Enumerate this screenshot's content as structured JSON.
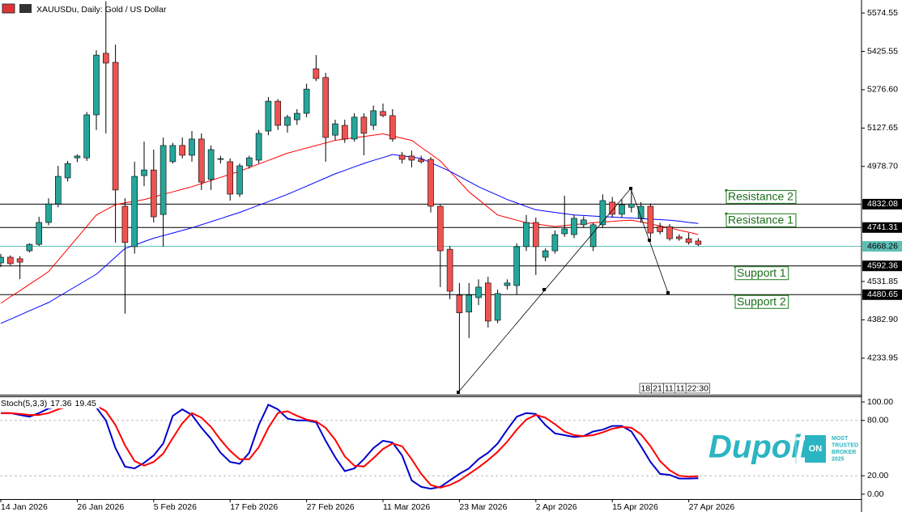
{
  "header": {
    "title": "XAUUSDu, Daily: Gold / US Dollar"
  },
  "chart_data": [
    {
      "type": "candlestick",
      "categories": [
        "14 Jan 2026",
        null,
        null,
        null,
        null,
        null,
        null,
        null,
        "26 Jan 2026",
        null,
        null,
        null,
        null,
        null,
        null,
        null,
        "5 Feb 2026",
        null,
        null,
        null,
        null,
        null,
        null,
        null,
        "17 Feb 2026",
        null,
        null,
        null,
        null,
        null,
        null,
        null,
        "27 Feb 2026",
        null,
        null,
        null,
        null,
        null,
        null,
        null,
        "11 Mar 2026",
        null,
        null,
        null,
        null,
        null,
        null,
        null,
        "23 Mar 2026",
        null,
        null,
        null,
        null,
        null,
        null,
        null,
        "2 Apr 2026",
        null,
        null,
        null,
        null,
        null,
        null,
        null,
        "15 Apr 2026",
        null,
        null,
        null,
        null,
        null,
        null,
        null,
        "27 Apr 2026",
        null
      ],
      "open": [
        4604,
        4626,
        4620,
        4651,
        4676,
        4761,
        4833,
        4934,
        5012,
        5012,
        5179,
        5418,
        5383,
        4824,
        4667,
        4943,
        4965,
        4792,
        4997,
        5060,
        5022,
        5085,
        4928,
        5006,
        4997,
        4871,
        4981,
        5003,
        5116,
        5232,
        5138,
        5160,
        5185,
        5358,
        5324,
        5100,
        5138,
        5085,
        5170,
        5138,
        5192,
        5176,
        5022,
        5019,
        5006,
        5006,
        4824,
        4657,
        4479,
        4413,
        4469,
        4526,
        4381,
        4516,
        4516,
        4667,
        4761,
        4626,
        4651,
        4717,
        4714,
        4752,
        4667,
        4752,
        4840,
        4793,
        4820,
        4777,
        4824,
        4745,
        4745,
        4705,
        4698,
        4689
      ],
      "high": [
        4639,
        4633,
        4630,
        4680,
        4783,
        4855,
        4981,
        5000,
        5025,
        5190,
        5430,
        5620,
        5452,
        4855,
        4997,
        5075,
        5044,
        5091,
        5070,
        5091,
        5116,
        5107,
        5060,
        5020,
        5010,
        4990,
        5020,
        5120,
        5248,
        5240,
        5179,
        5201,
        5300,
        5411,
        5342,
        5160,
        5160,
        5185,
        5185,
        5215,
        5223,
        5201,
        5035,
        5040,
        5020,
        5015,
        4830,
        4670,
        4526,
        4526,
        4540,
        4550,
        4500,
        4540,
        4680,
        4790,
        4780,
        4660,
        4730,
        4865,
        4790,
        4785,
        4760,
        4870,
        4860,
        4850,
        4896,
        4840,
        4835,
        4760,
        4755,
        4715,
        4720,
        4700
      ],
      "low": [
        4588,
        4595,
        4541,
        4645,
        4670,
        4750,
        4820,
        4920,
        4995,
        5000,
        5120,
        5107,
        4683,
        4407,
        4640,
        4902,
        4761,
        4667,
        4990,
        5010,
        4997,
        4887,
        4887,
        4990,
        4846,
        4860,
        4970,
        4990,
        5100,
        5120,
        5110,
        5140,
        5170,
        5310,
        4997,
        5080,
        5070,
        5075,
        5022,
        5120,
        5170,
        5075,
        4990,
        4975,
        4990,
        4800,
        4510,
        4463,
        4102,
        4312,
        4440,
        4353,
        4370,
        4500,
        4480,
        4650,
        4557,
        4610,
        4640,
        4705,
        4700,
        4740,
        4650,
        4740,
        4780,
        4780,
        4800,
        4760,
        4700,
        4715,
        4690,
        4690,
        4675,
        4670
      ],
      "close": [
        4626,
        4601,
        4607,
        4676,
        4761,
        4833,
        4940,
        4990,
        5019,
        5179,
        5411,
        5380,
        4887,
        4683,
        4940,
        4965,
        4783,
        5060,
        5060,
        5022,
        5085,
        4918,
        5044,
        5009,
        4871,
        4981,
        5012,
        5107,
        5232,
        5138,
        5170,
        5185,
        5279,
        5320,
        5091,
        5144,
        5085,
        5170,
        5107,
        5195,
        5176,
        5085,
        5006,
        5003,
        4997,
        4824,
        4651,
        4494,
        4410,
        4479,
        4510,
        4378,
        4485,
        4526,
        4667,
        4761,
        4667,
        4651,
        4714,
        4736,
        4777,
        4771,
        4752,
        4846,
        4793,
        4830,
        4833,
        4824,
        4720,
        4725,
        4698,
        4698,
        4683,
        4676
      ],
      "up_color": "#26a69a",
      "down_color": "#ef5350",
      "lines": [
        {
          "color": "#ff0000",
          "values": [
            4447,
            4472,
            4496,
            4521,
            4545,
            4570,
            4614,
            4658,
            4702,
            4746,
            4790,
            4810,
            4830,
            4837,
            4843,
            4850,
            4860,
            4870,
            4880,
            4890,
            4900,
            4912,
            4924,
            4936,
            4948,
            4960,
            4974,
            4988,
            5002,
            5016,
            5030,
            5040,
            5050,
            5060,
            5070,
            5080,
            5085,
            5090,
            5095,
            5100,
            5105,
            5097,
            5088,
            5080,
            5053,
            5027,
            5000,
            4960,
            4920,
            4880,
            4850,
            4820,
            4790,
            4780,
            4770,
            4760,
            4755,
            4750,
            4745,
            4749,
            4753,
            4756,
            4760,
            4763,
            4765,
            4768,
            4770,
            4763,
            4755,
            4748,
            4740,
            4731,
            4723,
            4714
          ]
        },
        {
          "color": "#0000ff",
          "values": [
            4369,
            4385,
            4401,
            4418,
            4434,
            4450,
            4472,
            4494,
            4516,
            4538,
            4560,
            4593,
            4627,
            4660,
            4673,
            4687,
            4700,
            4710,
            4720,
            4730,
            4740,
            4752,
            4764,
            4776,
            4788,
            4800,
            4814,
            4828,
            4842,
            4856,
            4870,
            4886,
            4902,
            4918,
            4934,
            4950,
            4963,
            4977,
            4990,
            5002,
            5013,
            5025,
            5020,
            5015,
            5010,
            4993,
            4977,
            4960,
            4940,
            4920,
            4900,
            4883,
            4867,
            4850,
            4837,
            4823,
            4810,
            4805,
            4800,
            4795,
            4790,
            4788,
            4786,
            4784,
            4782,
            4780,
            4778,
            4776,
            4774,
            4772,
            4770,
            4766,
            4761,
            4757
          ]
        }
      ],
      "ylim": [
        4092,
        5625
      ],
      "yticks": [
        5574.55,
        5425.55,
        {
          "value": 5276.6,
          "label": "5276.60"
        },
        5127.65,
        {
          "value": 4978.7,
          "label": "4978.70"
        },
        4531.85,
        {
          "value": 4382.9,
          "label": "4382.90"
        },
        4233.95
      ],
      "levels": [
        {
          "label": "Resistance 2",
          "value": 4832.08
        },
        {
          "label": "Resistance 1",
          "value": 4741.31
        },
        {
          "label": "Support 1",
          "value": 4592.36
        },
        {
          "label": "Support 2",
          "value": 4480.65
        }
      ],
      "current_price": 4668.26,
      "current_price_color": "#5fbfb6"
    },
    {
      "type": "line",
      "title": "Stoch(5,3,3)",
      "series": [
        {
          "color": "#0000cd",
          "values": [
            88,
            88,
            86,
            84,
            88,
            93,
            95,
            96,
            97,
            96,
            94,
            80,
            50,
            30,
            28,
            34,
            42,
            55,
            85,
            92,
            86,
            72,
            60,
            45,
            35,
            33,
            45,
            75,
            97,
            92,
            82,
            80,
            80,
            78,
            58,
            40,
            25,
            28,
            38,
            50,
            58,
            56,
            42,
            15,
            8,
            6,
            8,
            15,
            22,
            28,
            38,
            45,
            55,
            70,
            84,
            88,
            87,
            75,
            66,
            64,
            62,
            63,
            68,
            70,
            74,
            74,
            68,
            52,
            35,
            22,
            21,
            17,
            17,
            17.36
          ]
        },
        {
          "color": "#ff0000",
          "values": [
            88,
            88,
            87,
            86,
            86,
            88,
            92,
            95,
            96,
            96,
            96,
            90,
            75,
            53,
            36,
            31,
            35,
            44,
            61,
            77,
            88,
            83,
            73,
            59,
            47,
            38,
            38,
            51,
            72,
            88,
            90,
            85,
            81,
            79,
            72,
            59,
            41,
            31,
            30,
            39,
            49,
            55,
            52,
            38,
            22,
            10,
            7,
            10,
            15,
            22,
            29,
            37,
            46,
            57,
            70,
            81,
            86,
            83,
            76,
            68,
            64,
            63,
            64,
            67,
            71,
            73,
            72,
            65,
            52,
            36,
            26,
            20,
            19,
            19.45
          ]
        }
      ],
      "ylim": [
        0,
        100
      ],
      "yticks": [
        {
          "value": 100,
          "label": "100.00"
        },
        {
          "value": 80,
          "label": "80.00"
        },
        {
          "value": 20,
          "label": "20.00"
        },
        {
          "value": 0,
          "label": "0.00"
        }
      ]
    }
  ],
  "footer_tags": [
    "18",
    "21",
    "11",
    "11",
    "22:30"
  ],
  "watermark": {
    "brand": "Dupoin",
    "badge": "ON",
    "tagline": [
      "MOST",
      "TRUSTED",
      "BROKER",
      "2025"
    ]
  }
}
